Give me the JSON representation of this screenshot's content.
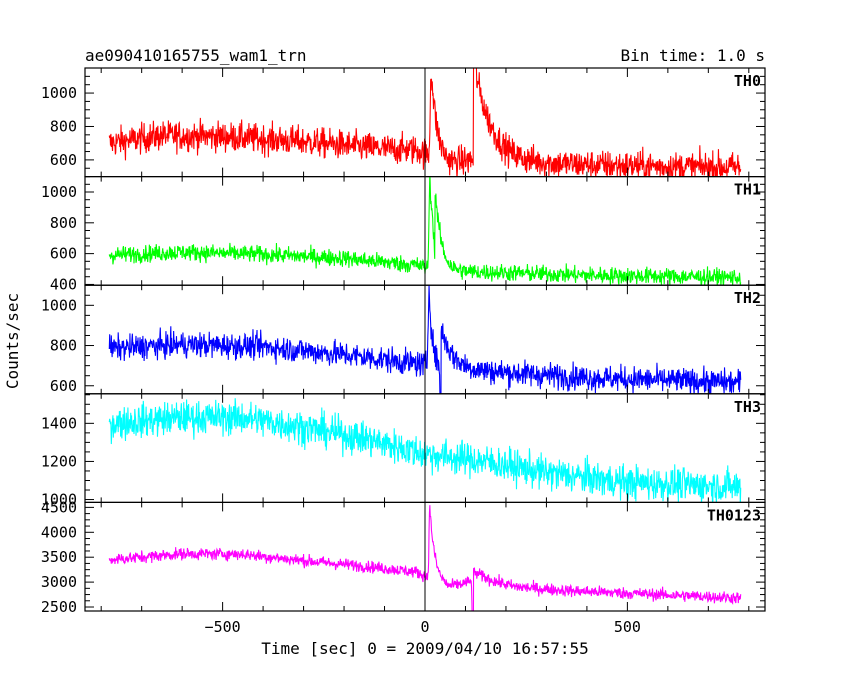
{
  "header": {
    "title": "ae090410165755_wam1_trn",
    "bin_time": "Bin time: 1.0 s"
  },
  "axes": {
    "xlabel": "Time [sec] 0 = 2009/04/10 16:57:55",
    "ylabel": "Counts/sec"
  },
  "chart_data": {
    "type": "line",
    "title": "ae090410165755_wam1_trn",
    "subtitle": "Bin time: 1.0 s",
    "xlabel": "Time [sec] 0 = 2009/04/10 16:57:55",
    "ylabel": "Counts/sec",
    "xlim": [
      -840,
      840
    ],
    "x_ticks": [
      -500,
      0,
      500
    ],
    "x_tick_labels": [
      "−500",
      "0",
      "500"
    ],
    "x_range_data": [
      -780,
      780
    ],
    "grid": false,
    "legend": "none",
    "series": [
      {
        "name": "TH0",
        "color": "#ff0000",
        "ylim": [
          500,
          1150
        ],
        "y_ticks": [
          600,
          800,
          1000
        ],
        "y_tick_labels": [
          "600",
          "800",
          "1000"
        ],
        "noise": 45,
        "baseline": [
          [
            -780,
            700
          ],
          [
            -650,
            745
          ],
          [
            -500,
            740
          ],
          [
            -300,
            710
          ],
          [
            -100,
            665
          ],
          [
            -20,
            660
          ],
          [
            60,
            580
          ],
          [
            140,
            605
          ],
          [
            220,
            585
          ],
          [
            400,
            570
          ],
          [
            600,
            560
          ],
          [
            780,
            555
          ]
        ],
        "peaks": [
          [
            15,
            1150,
            14
          ],
          [
            120,
            600,
            40
          ]
        ]
      },
      {
        "name": "TH1",
        "color": "#00ff00",
        "ylim": [
          395,
          1100
        ],
        "y_ticks": [
          400,
          600,
          800,
          1000
        ],
        "y_tick_labels": [
          "400",
          "600",
          "800",
          "1000"
        ],
        "noise": 28,
        "baseline": [
          [
            -780,
            590
          ],
          [
            -600,
            610
          ],
          [
            -400,
            595
          ],
          [
            -200,
            570
          ],
          [
            -20,
            525
          ],
          [
            50,
            480
          ],
          [
            150,
            480
          ],
          [
            400,
            460
          ],
          [
            780,
            445
          ]
        ],
        "peaks": [
          [
            12,
            1080,
            12
          ],
          [
            25,
            330,
            18
          ]
        ]
      },
      {
        "name": "TH2",
        "color": "#0000ff",
        "ylim": [
          560,
          1100
        ],
        "y_ticks": [
          600,
          800,
          1000
        ],
        "y_tick_labels": [
          "600",
          "800",
          "1000"
        ],
        "noise": 32,
        "baseline": [
          [
            -780,
            785
          ],
          [
            -600,
            805
          ],
          [
            -400,
            795
          ],
          [
            -200,
            755
          ],
          [
            -20,
            710
          ],
          [
            60,
            680
          ],
          [
            200,
            665
          ],
          [
            400,
            640
          ],
          [
            780,
            615
          ]
        ],
        "peaks": [
          [
            10,
            1100,
            8
          ],
          [
            40,
            190,
            30
          ]
        ]
      },
      {
        "name": "TH3",
        "color": "#00ffff",
        "ylim": [
          985,
          1555
        ],
        "y_ticks": [
          1000,
          1200,
          1400
        ],
        "y_tick_labels": [
          "1000",
          "1200",
          "1400"
        ],
        "noise": 45,
        "baseline": [
          [
            -780,
            1400
          ],
          [
            -600,
            1430
          ],
          [
            -450,
            1430
          ],
          [
            -300,
            1380
          ],
          [
            -150,
            1320
          ],
          [
            0,
            1240
          ],
          [
            150,
            1200
          ],
          [
            300,
            1140
          ],
          [
            500,
            1090
          ],
          [
            780,
            1065
          ]
        ],
        "peaks": []
      },
      {
        "name": "TH0123",
        "color": "#ff00ff",
        "ylim": [
          2420,
          4600
        ],
        "y_ticks": [
          2500,
          3000,
          3500,
          4000,
          4500
        ],
        "y_tick_labels": [
          "2500",
          "3000",
          "3500",
          "4000",
          "4500"
        ],
        "noise": 60,
        "baseline": [
          [
            -780,
            3450
          ],
          [
            -600,
            3570
          ],
          [
            -450,
            3560
          ],
          [
            -300,
            3430
          ],
          [
            -150,
            3320
          ],
          [
            -20,
            3200
          ],
          [
            60,
            2900
          ],
          [
            130,
            3050
          ],
          [
            220,
            2900
          ],
          [
            350,
            2830
          ],
          [
            550,
            2760
          ],
          [
            780,
            2680
          ]
        ],
        "peaks": [
          [
            12,
            4500,
            12
          ],
          [
            120,
            150,
            40
          ]
        ]
      }
    ]
  }
}
